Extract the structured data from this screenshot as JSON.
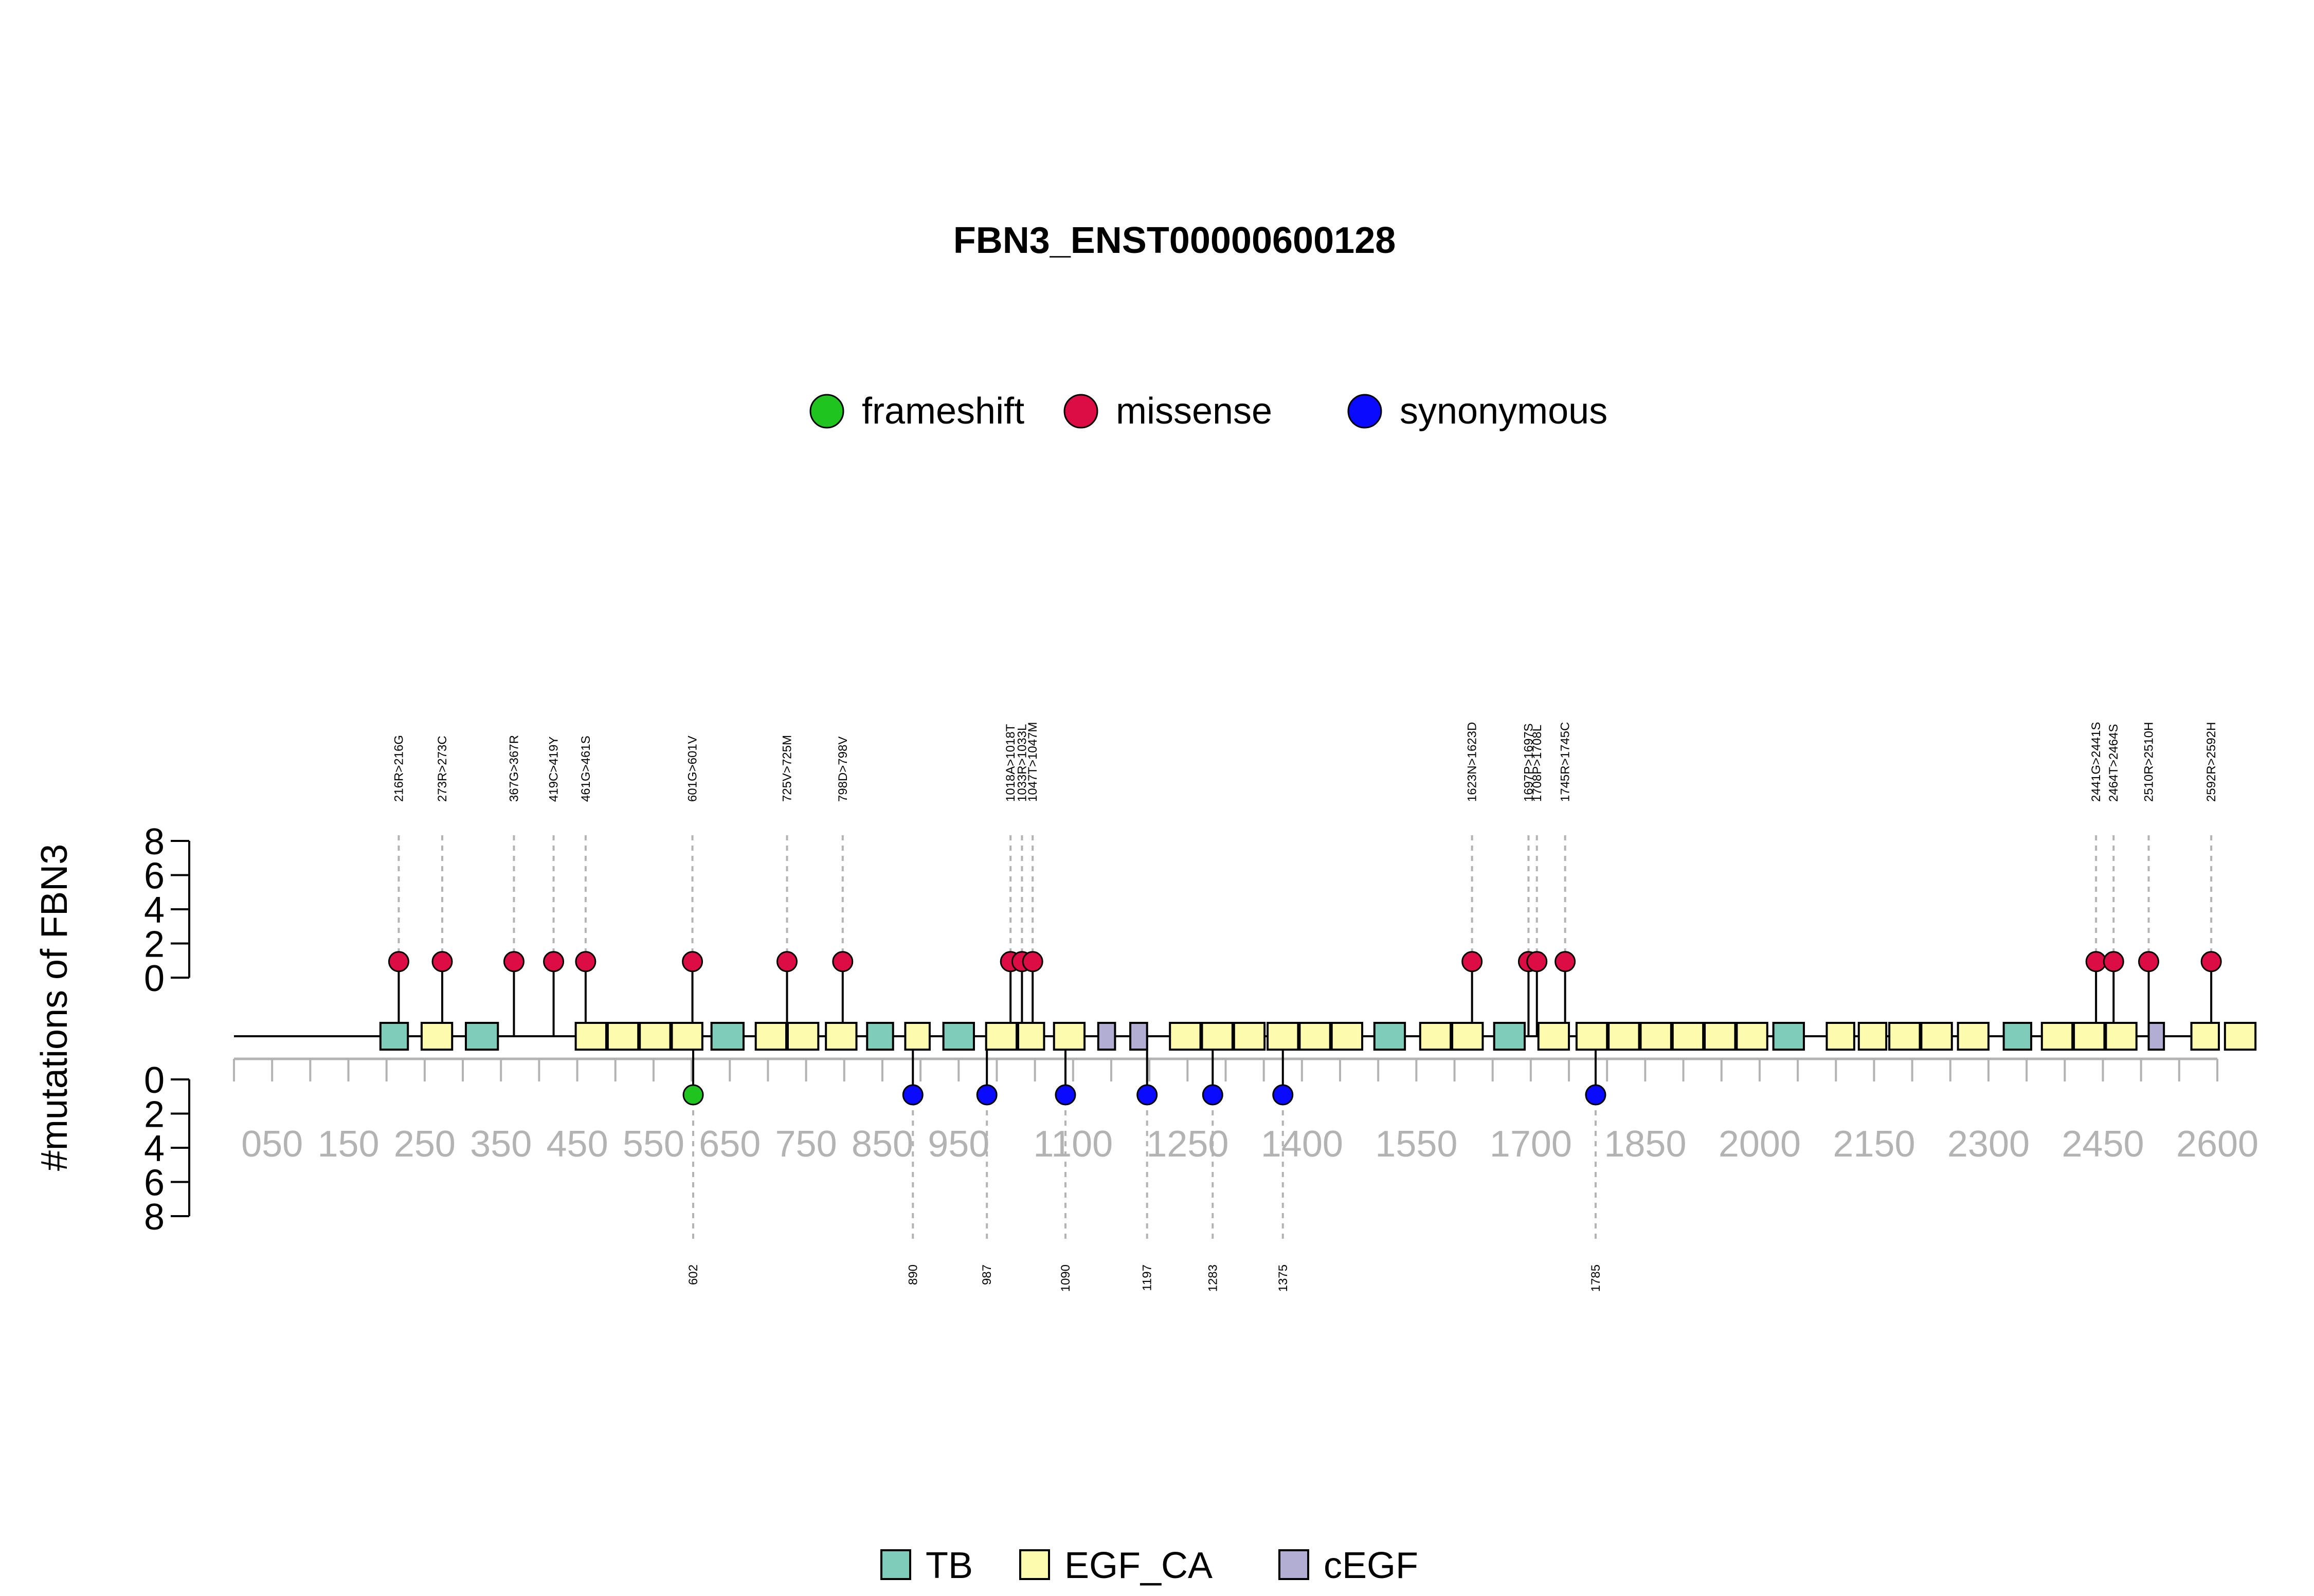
{
  "chart_data": {
    "type": "lollipop",
    "title": "FBN3_ENST00000600128",
    "ylabel": "#mutations of FBN3",
    "xlim": [
      0,
      2600
    ],
    "yticks": [
      "0",
      "2",
      "4",
      "6",
      "8"
    ],
    "xticks": [
      {
        "pos": 50,
        "label": "050"
      },
      {
        "pos": 150,
        "label": "150"
      },
      {
        "pos": 250,
        "label": "250"
      },
      {
        "pos": 350,
        "label": "350"
      },
      {
        "pos": 450,
        "label": "450"
      },
      {
        "pos": 550,
        "label": "550"
      },
      {
        "pos": 650,
        "label": "650"
      },
      {
        "pos": 750,
        "label": "750"
      },
      {
        "pos": 850,
        "label": "850"
      },
      {
        "pos": 950,
        "label": "950"
      },
      {
        "pos": 1100,
        "label": "1100"
      },
      {
        "pos": 1250,
        "label": "1250"
      },
      {
        "pos": 1400,
        "label": "1400"
      },
      {
        "pos": 1550,
        "label": "1550"
      },
      {
        "pos": 1700,
        "label": "1700"
      },
      {
        "pos": 1850,
        "label": "1850"
      },
      {
        "pos": 2000,
        "label": "2000"
      },
      {
        "pos": 2150,
        "label": "2150"
      },
      {
        "pos": 2300,
        "label": "2300"
      },
      {
        "pos": 2450,
        "label": "2450"
      },
      {
        "pos": 2600,
        "label": "2600"
      }
    ],
    "mutation_legend": [
      {
        "name": "frameshift",
        "color": "#1fc41f"
      },
      {
        "name": "missense",
        "color": "#dc0c44"
      },
      {
        "name": "synonymous",
        "color": "#0a0aff"
      }
    ],
    "domain_legend": [
      {
        "name": "TB",
        "color": "#7fccba"
      },
      {
        "name": "EGF_CA",
        "color": "#fdfbad"
      },
      {
        "name": "cEGF",
        "color": "#b2aed3"
      }
    ],
    "upper_mutations": [
      {
        "pos": 216,
        "label": "216R>216G",
        "count": 1,
        "type": "missense",
        "stem": 216
      },
      {
        "pos": 273,
        "label": "273R>273C",
        "count": 1,
        "type": "missense",
        "stem": 273
      },
      {
        "pos": 367,
        "label": "367G>367R",
        "count": 1,
        "type": "missense",
        "stem": 367
      },
      {
        "pos": 419,
        "label": "419C>419Y",
        "count": 1,
        "type": "missense",
        "stem": 419
      },
      {
        "pos": 461,
        "label": "461G>461S",
        "count": 1,
        "type": "missense",
        "stem": 461
      },
      {
        "pos": 601,
        "label": "601G>601V",
        "count": 1,
        "type": "missense",
        "stem": 601
      },
      {
        "pos": 725,
        "label": "725V>725M",
        "count": 1,
        "type": "missense",
        "stem": 725
      },
      {
        "pos": 798,
        "label": "798D>798V",
        "count": 1,
        "type": "missense",
        "stem": 798
      },
      {
        "pos": 1018,
        "label": "1018A>1018T",
        "count": 1,
        "type": "missense",
        "stem": 1018
      },
      {
        "pos": 1033,
        "label": "1033R>1033L",
        "count": 1,
        "type": "missense",
        "stem": 1033
      },
      {
        "pos": 1047,
        "label": "1047T>1047M",
        "count": 1,
        "type": "missense",
        "stem": 1047
      },
      {
        "pos": 1623,
        "label": "1623N>1623D",
        "count": 1,
        "type": "missense",
        "stem": 1623
      },
      {
        "pos": 1697,
        "label": "1697P>1697S",
        "count": 1,
        "type": "missense",
        "stem": 1697
      },
      {
        "pos": 1708,
        "label": "1708P>1708L",
        "count": 1,
        "type": "missense",
        "stem": 1708
      },
      {
        "pos": 1745,
        "label": "1745R>1745C",
        "count": 1,
        "type": "missense",
        "stem": 1745
      },
      {
        "pos": 2441,
        "label": "2441G>2441S",
        "count": 1,
        "type": "missense",
        "stem": 2441
      },
      {
        "pos": 2464,
        "label": "2464T>2464S",
        "count": 1,
        "type": "missense",
        "stem": 2464
      },
      {
        "pos": 2510,
        "label": "2510R>2510H",
        "count": 1,
        "type": "missense",
        "stem": 2510
      },
      {
        "pos": 2592,
        "label": "2592R>2592H",
        "count": 1,
        "type": "missense",
        "stem": 2592
      }
    ],
    "lower_mutations": [
      {
        "pos": 602,
        "label": "602",
        "count": 1,
        "type": "frameshift"
      },
      {
        "pos": 890,
        "label": "890",
        "count": 1,
        "type": "synonymous"
      },
      {
        "pos": 987,
        "label": "987",
        "count": 1,
        "type": "synonymous"
      },
      {
        "pos": 1090,
        "label": "1090",
        "count": 1,
        "type": "synonymous"
      },
      {
        "pos": 1197,
        "label": "1197",
        "count": 1,
        "type": "synonymous"
      },
      {
        "pos": 1283,
        "label": "1283",
        "count": 1,
        "type": "synonymous"
      },
      {
        "pos": 1375,
        "label": "1375",
        "count": 1,
        "type": "synonymous"
      },
      {
        "pos": 1785,
        "label": "1785",
        "count": 1,
        "type": "synonymous"
      }
    ],
    "domains": [
      {
        "type": "TB",
        "start": 192,
        "end": 228
      },
      {
        "type": "EGF_CA",
        "start": 246,
        "end": 286
      },
      {
        "type": "TB",
        "start": 304,
        "end": 346
      },
      {
        "type": "EGF_CA",
        "start": 448,
        "end": 488
      },
      {
        "type": "EGF_CA",
        "start": 490,
        "end": 530
      },
      {
        "type": "EGF_CA",
        "start": 532,
        "end": 572
      },
      {
        "type": "EGF_CA",
        "start": 574,
        "end": 614
      },
      {
        "type": "TB",
        "start": 626,
        "end": 668
      },
      {
        "type": "EGF_CA",
        "start": 684,
        "end": 724
      },
      {
        "type": "EGF_CA",
        "start": 726,
        "end": 766
      },
      {
        "type": "EGF_CA",
        "start": 776,
        "end": 816
      },
      {
        "type": "TB",
        "start": 830,
        "end": 864
      },
      {
        "type": "EGF_CA",
        "start": 880,
        "end": 912
      },
      {
        "type": "TB",
        "start": 930,
        "end": 970
      },
      {
        "type": "EGF_CA",
        "start": 986,
        "end": 1026
      },
      {
        "type": "EGF_CA",
        "start": 1028,
        "end": 1062
      },
      {
        "type": "EGF_CA",
        "start": 1075,
        "end": 1115
      },
      {
        "type": "cEGF",
        "start": 1133,
        "end": 1155
      },
      {
        "type": "cEGF",
        "start": 1175,
        "end": 1197
      },
      {
        "type": "EGF_CA",
        "start": 1227,
        "end": 1267
      },
      {
        "type": "EGF_CA",
        "start": 1269,
        "end": 1309
      },
      {
        "type": "EGF_CA",
        "start": 1311,
        "end": 1351
      },
      {
        "type": "EGF_CA",
        "start": 1355,
        "end": 1395
      },
      {
        "type": "EGF_CA",
        "start": 1397,
        "end": 1437
      },
      {
        "type": "EGF_CA",
        "start": 1439,
        "end": 1479
      },
      {
        "type": "TB",
        "start": 1495,
        "end": 1535
      },
      {
        "type": "EGF_CA",
        "start": 1555,
        "end": 1595
      },
      {
        "type": "EGF_CA",
        "start": 1597,
        "end": 1637
      },
      {
        "type": "TB",
        "start": 1652,
        "end": 1692
      },
      {
        "type": "EGF_CA",
        "start": 1710,
        "end": 1750
      },
      {
        "type": "EGF_CA",
        "start": 1760,
        "end": 1800
      },
      {
        "type": "EGF_CA",
        "start": 1802,
        "end": 1842
      },
      {
        "type": "EGF_CA",
        "start": 1844,
        "end": 1884
      },
      {
        "type": "EGF_CA",
        "start": 1886,
        "end": 1926
      },
      {
        "type": "EGF_CA",
        "start": 1928,
        "end": 1968
      },
      {
        "type": "EGF_CA",
        "start": 1970,
        "end": 2010
      },
      {
        "type": "TB",
        "start": 2018,
        "end": 2058
      },
      {
        "type": "EGF_CA",
        "start": 2088,
        "end": 2124
      },
      {
        "type": "EGF_CA",
        "start": 2130,
        "end": 2166
      },
      {
        "type": "EGF_CA",
        "start": 2170,
        "end": 2210
      },
      {
        "type": "EGF_CA",
        "start": 2212,
        "end": 2252
      },
      {
        "type": "EGF_CA",
        "start": 2260,
        "end": 2300
      },
      {
        "type": "TB",
        "start": 2320,
        "end": 2356
      },
      {
        "type": "EGF_CA",
        "start": 2370,
        "end": 2410
      },
      {
        "type": "EGF_CA",
        "start": 2412,
        "end": 2452
      },
      {
        "type": "EGF_CA",
        "start": 2454,
        "end": 2494
      },
      {
        "type": "cEGF",
        "start": 2510,
        "end": 2530
      },
      {
        "type": "EGF_CA",
        "start": 2566,
        "end": 2602
      },
      {
        "type": "EGF_CA",
        "start": 2610,
        "end": 2650
      }
    ]
  }
}
